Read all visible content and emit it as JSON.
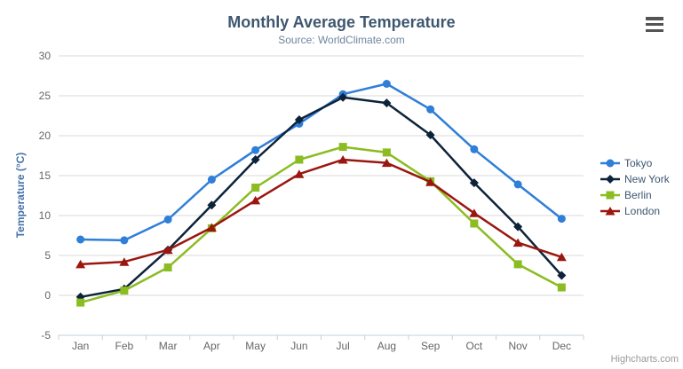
{
  "chart": {
    "title": "Monthly Average Temperature",
    "subtitle": "Source: WorldClimate.com",
    "y_axis_title": "Temperature (°C)",
    "credits": "Highcharts.com",
    "menu_icon": "hamburger-icon"
  },
  "chart_data": {
    "type": "line",
    "title": "Monthly Average Temperature",
    "subtitle": "Source: WorldClimate.com",
    "xlabel": "",
    "ylabel": "Temperature (°C)",
    "ylim": [
      -5,
      30
    ],
    "y_tick_interval": 5,
    "grid": "horizontal",
    "legend_position": "right",
    "categories": [
      "Jan",
      "Feb",
      "Mar",
      "Apr",
      "May",
      "Jun",
      "Jul",
      "Aug",
      "Sep",
      "Oct",
      "Nov",
      "Dec"
    ],
    "series": [
      {
        "name": "Tokyo",
        "marker": "circle",
        "color": "#2f7ed8",
        "values": [
          7.0,
          6.9,
          9.5,
          14.5,
          18.2,
          21.5,
          25.2,
          26.5,
          23.3,
          18.3,
          13.9,
          9.6
        ]
      },
      {
        "name": "New York",
        "marker": "diamond",
        "color": "#0d233a",
        "values": [
          -0.2,
          0.8,
          5.7,
          11.3,
          17.0,
          22.0,
          24.8,
          24.1,
          20.1,
          14.1,
          8.6,
          2.5
        ]
      },
      {
        "name": "Berlin",
        "marker": "square",
        "color": "#8bbc21",
        "values": [
          -0.9,
          0.6,
          3.5,
          8.4,
          13.5,
          17.0,
          18.6,
          17.9,
          14.3,
          9.0,
          3.9,
          1.0
        ]
      },
      {
        "name": "London",
        "marker": "triangle",
        "color": "#9a1710",
        "values": [
          3.9,
          4.2,
          5.7,
          8.5,
          11.9,
          15.2,
          17.0,
          16.6,
          14.2,
          10.3,
          6.6,
          4.8
        ]
      }
    ],
    "colors": {
      "gridline": "#d8d8d8",
      "axis_line": "#c0d0e0",
      "tick_label": "#666666",
      "axis_title": "#4572a7",
      "title": "#3e576f",
      "subtitle": "#6d869f",
      "legend_label": "#3e576f",
      "credits": "#999999",
      "background": "#ffffff"
    }
  }
}
